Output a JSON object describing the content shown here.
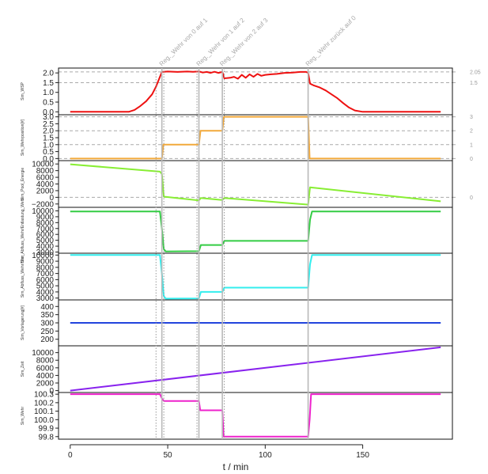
{
  "chart_data": {
    "type": "line",
    "x_label": "t / min",
    "x_range": [
      -6,
      196
    ],
    "x_ticks": [
      0,
      50,
      100,
      150
    ],
    "events": [
      {
        "t": 47,
        "label": "Reg._Wehr von 0 auf 1"
      },
      {
        "t": 66,
        "label": "Reg._Wehr von 1 auf 2"
      },
      {
        "t": 78,
        "label": "Reg._Wehr von 2 auf 3"
      },
      {
        "t": 122,
        "label": "Reg._Wehr zurück auf 0"
      }
    ],
    "dotted_lines": [
      44,
      48,
      65,
      79
    ],
    "panels": [
      {
        "ylabel": "Sim_WSP",
        "color": "#ee1111",
        "ylim": [
          -0.15,
          2.25
        ],
        "yticks": [
          "0.0",
          "0.5",
          "1.0",
          "1.5",
          "2.0"
        ],
        "ytick_values": [
          0,
          0.5,
          1.0,
          1.5,
          2.0
        ],
        "hlines": [
          1.5,
          2.05
        ],
        "right_ticks": [
          {
            "v": 1.5,
            "label": "1.5"
          },
          {
            "v": 2.05,
            "label": "2.05"
          }
        ],
        "x": [
          0,
          30,
          33,
          36,
          39,
          42,
          44,
          46,
          47,
          50,
          55,
          60,
          63,
          66,
          68,
          70,
          72,
          74,
          76,
          78,
          79,
          82,
          84,
          86,
          88,
          90,
          92,
          94,
          96,
          98,
          100,
          103,
          106,
          110,
          114,
          118,
          121,
          122,
          123,
          125,
          128,
          131,
          134,
          137,
          140,
          143,
          146,
          150,
          160,
          170,
          180,
          190
        ],
        "y": [
          0,
          0,
          0.1,
          0.3,
          0.55,
          0.9,
          1.3,
          1.8,
          2.05,
          2.07,
          2.05,
          2.07,
          2.06,
          2.08,
          2.02,
          2.05,
          2.0,
          2.06,
          2.0,
          2.05,
          1.72,
          1.75,
          1.8,
          1.7,
          1.9,
          1.75,
          1.93,
          1.8,
          1.95,
          1.85,
          1.9,
          1.93,
          1.95,
          2.0,
          2.02,
          2.05,
          2.05,
          2.0,
          1.45,
          1.35,
          1.25,
          1.1,
          0.9,
          0.7,
          0.45,
          0.22,
          0.07,
          0,
          0,
          0,
          0,
          0
        ]
      },
      {
        "ylabel": "Sim_Wehrposition[#]",
        "color": "#f2a93b",
        "ylim": [
          -0.15,
          3.15
        ],
        "yticks": [
          "0.0",
          "0.5",
          "1.0",
          "1.5",
          "2.0",
          "2.5",
          "3.0"
        ],
        "ytick_values": [
          0,
          0.5,
          1.0,
          1.5,
          2.0,
          2.5,
          3.0
        ],
        "hlines": [
          0,
          1,
          2,
          3
        ],
        "right_ticks": [
          {
            "v": 0,
            "label": "0"
          },
          {
            "v": 1,
            "label": "1"
          },
          {
            "v": 2,
            "label": "2"
          },
          {
            "v": 3,
            "label": "3"
          }
        ],
        "x": [
          0,
          47,
          47.8,
          66,
          66.8,
          78,
          78.8,
          122,
          122.8,
          190
        ],
        "y": [
          0,
          0,
          1,
          1,
          2,
          2,
          3,
          3,
          0,
          0
        ]
      },
      {
        "ylabel": "Sim_Pool_Energie",
        "color": "#88ee33",
        "ylim": [
          -3000,
          11000
        ],
        "yticks": [
          "−2000",
          "0",
          "2000",
          "4000",
          "6000",
          "8000",
          "10000"
        ],
        "ytick_values": [
          -2000,
          0,
          2000,
          4000,
          6000,
          8000,
          10000
        ],
        "hlines": [
          0
        ],
        "right_ticks": [
          {
            "v": 0,
            "label": "0"
          }
        ],
        "x": [
          0,
          46,
          47,
          48,
          66,
          67,
          78,
          79,
          122,
          123,
          190
        ],
        "y": [
          9900,
          7700,
          7000,
          200,
          -900,
          -200,
          -800,
          -200,
          -2200,
          3000,
          -1200
        ]
      },
      {
        "ylabel": "Sim_Abfluss_Wehr/Entlastung_Wehr",
        "color": "#33cc44",
        "ylim": [
          2800,
          10600
        ],
        "yticks": [
          "3000",
          "4000",
          "5000",
          "6000",
          "7000",
          "8000",
          "9000",
          "10000"
        ],
        "ytick_values": [
          3000,
          4000,
          5000,
          6000,
          7000,
          8000,
          9000,
          10000
        ],
        "hlines": [],
        "right_ticks": [],
        "x": [
          0,
          46,
          47,
          48,
          49,
          66,
          67,
          78,
          79,
          122,
          123,
          124,
          190
        ],
        "y": [
          9900,
          9900,
          7000,
          3500,
          3100,
          3150,
          4200,
          4200,
          4900,
          4900,
          8500,
          9900,
          9900
        ]
      },
      {
        "ylabel": "Sim_Abfluss_Wehr/Ufer",
        "color": "#33eeee",
        "ylim": [
          2700,
          10300
        ],
        "yticks": [
          "3000",
          "4000",
          "5000",
          "6000",
          "7000",
          "8000",
          "9000",
          "10000"
        ],
        "ytick_values": [
          3000,
          4000,
          5000,
          6000,
          7000,
          8000,
          9000,
          10000
        ],
        "hlines": [],
        "right_ticks": [],
        "x": [
          0,
          46,
          47,
          48,
          49,
          66,
          67,
          78,
          79,
          122,
          123,
          124,
          190
        ],
        "y": [
          10000,
          10000,
          7000,
          3300,
          2900,
          2950,
          4000,
          4000,
          4700,
          4700,
          8500,
          10000,
          10000
        ]
      },
      {
        "ylabel": "Sim_Vorlagerung[#]",
        "color": "#2244dd",
        "ylim": [
          160,
          440
        ],
        "yticks": [
          "200",
          "250",
          "300",
          "350",
          "400"
        ],
        "ytick_values": [
          200,
          250,
          300,
          350,
          400
        ],
        "hlines": [],
        "right_ticks": [],
        "x": [
          0,
          190
        ],
        "y": [
          300,
          300
        ]
      },
      {
        "ylabel": "Sim_Zeit",
        "color": "#8822ee",
        "ylim": [
          -500,
          11800
        ],
        "yticks": [
          "0",
          "2000",
          "4000",
          "6000",
          "8000",
          "10000"
        ],
        "ytick_values": [
          0,
          2000,
          4000,
          6000,
          8000,
          10000
        ],
        "hlines": [],
        "right_ticks": [],
        "x": [
          0,
          190
        ],
        "y": [
          0,
          11400
        ]
      },
      {
        "ylabel": "Sim_Wehr",
        "color": "#ee22cc",
        "ylim": [
          99.77,
          100.32
        ],
        "yticks": [
          "99.8",
          "99.9",
          "100.0",
          "100.1",
          "100.2",
          "100.3"
        ],
        "ytick_values": [
          99.8,
          99.9,
          100.0,
          100.1,
          100.2,
          100.3
        ],
        "hlines": [],
        "right_ticks": [],
        "x": [
          0,
          46,
          47,
          48,
          66,
          66.7,
          78,
          78.7,
          122,
          122.8,
          123.5,
          190
        ],
        "y": [
          100.3,
          100.3,
          100.25,
          100.22,
          100.22,
          100.11,
          100.11,
          99.8,
          99.8,
          100.0,
          100.3,
          100.3
        ]
      }
    ]
  }
}
